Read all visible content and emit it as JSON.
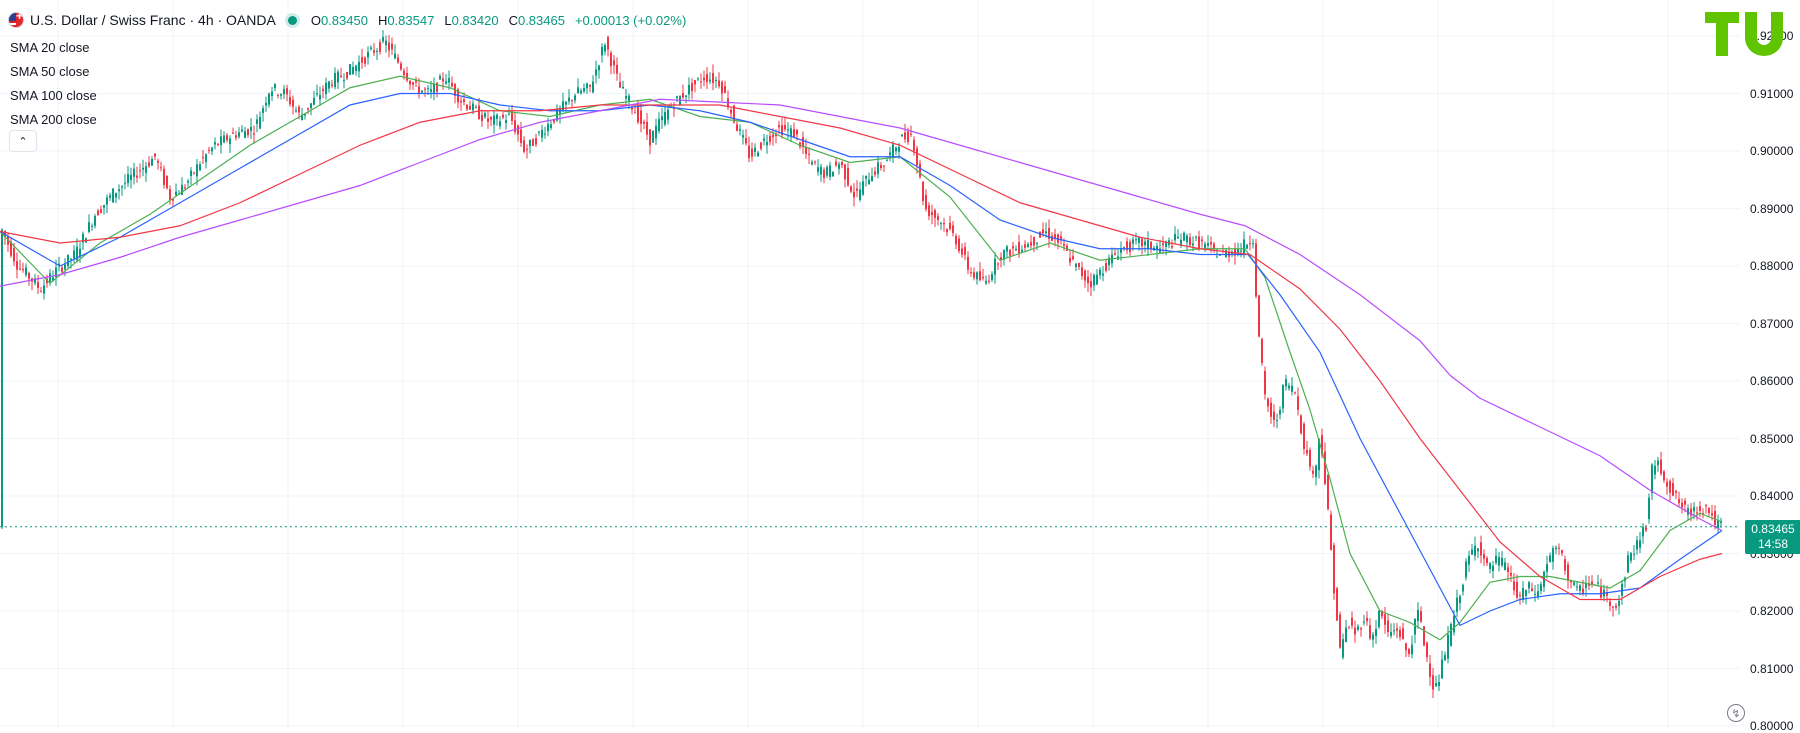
{
  "header": {
    "symbol_title": "U.S. Dollar / Swiss Franc · 4h · OANDA",
    "ohlc": [
      {
        "k": "O",
        "v": "0.83450"
      },
      {
        "k": "H",
        "v": "0.83547"
      },
      {
        "k": "L",
        "v": "0.83420"
      },
      {
        "k": "C",
        "v": "0.83465"
      },
      {
        "k": "",
        "v": "+0.00013 (+0.02%)"
      }
    ]
  },
  "indicators": [
    "SMA 20 close",
    "SMA 50 close",
    "SMA 100 close",
    "SMA 200 close"
  ],
  "collapse_icon": "chevron-up-icon",
  "logo": "TU",
  "last_price": {
    "price": "0.83465",
    "countdown": "14:58"
  },
  "colors": {
    "up": "#089981",
    "down": "#f23645",
    "sma20": "#4caf50",
    "sma50": "#2962ff",
    "sma100": "#f23645",
    "sma200": "#b84dff",
    "logo": "#61c400"
  },
  "chart_data": {
    "type": "candlestick",
    "title": "U.S. Dollar / Swiss Franc · 4h · OANDA",
    "ylim": [
      0.8,
      0.9225
    ],
    "y_ticks": [
      "0.92000",
      "0.91000",
      "0.90000",
      "0.89000",
      "0.88000",
      "0.87000",
      "0.86000",
      "0.85000",
      "0.84000",
      "0.83000",
      "0.82000",
      "0.81000",
      "0.80000"
    ],
    "price_series": [
      [
        0,
        0.887
      ],
      [
        18,
        0.88
      ],
      [
        30,
        0.878
      ],
      [
        40,
        0.876
      ],
      [
        55,
        0.879
      ],
      [
        75,
        0.882
      ],
      [
        95,
        0.889
      ],
      [
        115,
        0.893
      ],
      [
        135,
        0.896
      ],
      [
        155,
        0.899
      ],
      [
        170,
        0.892
      ],
      [
        185,
        0.894
      ],
      [
        200,
        0.898
      ],
      [
        215,
        0.901
      ],
      [
        235,
        0.903
      ],
      [
        255,
        0.904
      ],
      [
        270,
        0.911
      ],
      [
        285,
        0.91
      ],
      [
        300,
        0.906
      ],
      [
        315,
        0.909
      ],
      [
        330,
        0.912
      ],
      [
        350,
        0.914
      ],
      [
        370,
        0.917
      ],
      [
        385,
        0.919
      ],
      [
        400,
        0.915
      ],
      [
        415,
        0.911
      ],
      [
        430,
        0.91
      ],
      [
        445,
        0.913
      ],
      [
        460,
        0.909
      ],
      [
        475,
        0.907
      ],
      [
        490,
        0.905
      ],
      [
        510,
        0.906
      ],
      [
        525,
        0.9
      ],
      [
        540,
        0.903
      ],
      [
        560,
        0.907
      ],
      [
        575,
        0.91
      ],
      [
        590,
        0.911
      ],
      [
        605,
        0.919
      ],
      [
        620,
        0.911
      ],
      [
        635,
        0.907
      ],
      [
        650,
        0.902
      ],
      [
        660,
        0.905
      ],
      [
        672,
        0.908
      ],
      [
        690,
        0.911
      ],
      [
        705,
        0.913
      ],
      [
        720,
        0.912
      ],
      [
        735,
        0.905
      ],
      [
        750,
        0.899
      ],
      [
        765,
        0.902
      ],
      [
        780,
        0.904
      ],
      [
        795,
        0.903
      ],
      [
        810,
        0.898
      ],
      [
        825,
        0.896
      ],
      [
        840,
        0.898
      ],
      [
        855,
        0.892
      ],
      [
        870,
        0.896
      ],
      [
        885,
        0.898
      ],
      [
        900,
        0.902
      ],
      [
        912,
        0.903
      ],
      [
        925,
        0.89
      ],
      [
        940,
        0.888
      ],
      [
        955,
        0.885
      ],
      [
        970,
        0.879
      ],
      [
        985,
        0.877
      ],
      [
        1000,
        0.882
      ],
      [
        1015,
        0.883
      ],
      [
        1030,
        0.884
      ],
      [
        1045,
        0.886
      ],
      [
        1060,
        0.884
      ],
      [
        1075,
        0.88
      ],
      [
        1090,
        0.877
      ],
      [
        1105,
        0.88
      ],
      [
        1120,
        0.883
      ],
      [
        1140,
        0.884
      ],
      [
        1160,
        0.883
      ],
      [
        1180,
        0.885
      ],
      [
        1200,
        0.884
      ],
      [
        1220,
        0.882
      ],
      [
        1240,
        0.883
      ],
      [
        1253,
        0.885
      ],
      [
        1258,
        0.869
      ],
      [
        1265,
        0.857
      ],
      [
        1275,
        0.852
      ],
      [
        1285,
        0.86
      ],
      [
        1295,
        0.858
      ],
      [
        1305,
        0.848
      ],
      [
        1315,
        0.843
      ],
      [
        1320,
        0.852
      ],
      [
        1328,
        0.837
      ],
      [
        1333,
        0.826
      ],
      [
        1340,
        0.813
      ],
      [
        1348,
        0.818
      ],
      [
        1356,
        0.816
      ],
      [
        1364,
        0.819
      ],
      [
        1372,
        0.815
      ],
      [
        1380,
        0.82
      ],
      [
        1388,
        0.816
      ],
      [
        1398,
        0.817
      ],
      [
        1408,
        0.812
      ],
      [
        1418,
        0.82
      ],
      [
        1428,
        0.811
      ],
      [
        1435,
        0.806
      ],
      [
        1440,
        0.809
      ],
      [
        1448,
        0.815
      ],
      [
        1458,
        0.822
      ],
      [
        1468,
        0.829
      ],
      [
        1478,
        0.832
      ],
      [
        1488,
        0.827
      ],
      [
        1498,
        0.829
      ],
      [
        1508,
        0.827
      ],
      [
        1518,
        0.822
      ],
      [
        1528,
        0.824
      ],
      [
        1538,
        0.823
      ],
      [
        1548,
        0.829
      ],
      [
        1558,
        0.831
      ],
      [
        1568,
        0.826
      ],
      [
        1578,
        0.823
      ],
      [
        1588,
        0.825
      ],
      [
        1598,
        0.824
      ],
      [
        1608,
        0.822
      ],
      [
        1618,
        0.821
      ],
      [
        1628,
        0.829
      ],
      [
        1638,
        0.832
      ],
      [
        1646,
        0.835
      ],
      [
        1653,
        0.846
      ],
      [
        1660,
        0.845
      ],
      [
        1668,
        0.842
      ],
      [
        1678,
        0.839
      ],
      [
        1688,
        0.837
      ],
      [
        1698,
        0.838
      ],
      [
        1708,
        0.838
      ],
      [
        1716,
        0.835
      ],
      [
        1722,
        0.83465
      ]
    ],
    "series": [
      {
        "name": "SMA 20 close",
        "color": "#4caf50",
        "points": [
          [
            0,
            0.886
          ],
          [
            50,
            0.877
          ],
          [
            100,
            0.884
          ],
          [
            150,
            0.889
          ],
          [
            200,
            0.895
          ],
          [
            250,
            0.901
          ],
          [
            300,
            0.906
          ],
          [
            350,
            0.911
          ],
          [
            400,
            0.913
          ],
          [
            450,
            0.911
          ],
          [
            500,
            0.907
          ],
          [
            550,
            0.906
          ],
          [
            600,
            0.908
          ],
          [
            650,
            0.909
          ],
          [
            700,
            0.906
          ],
          [
            750,
            0.905
          ],
          [
            800,
            0.901
          ],
          [
            850,
            0.898
          ],
          [
            900,
            0.899
          ],
          [
            950,
            0.892
          ],
          [
            1000,
            0.881
          ],
          [
            1050,
            0.884
          ],
          [
            1100,
            0.881
          ],
          [
            1150,
            0.882
          ],
          [
            1200,
            0.883
          ],
          [
            1245,
            0.883
          ],
          [
            1265,
            0.878
          ],
          [
            1290,
            0.865
          ],
          [
            1310,
            0.855
          ],
          [
            1330,
            0.843
          ],
          [
            1350,
            0.83
          ],
          [
            1380,
            0.82
          ],
          [
            1410,
            0.818
          ],
          [
            1440,
            0.815
          ],
          [
            1460,
            0.818
          ],
          [
            1490,
            0.825
          ],
          [
            1520,
            0.826
          ],
          [
            1550,
            0.826
          ],
          [
            1580,
            0.825
          ],
          [
            1610,
            0.824
          ],
          [
            1640,
            0.827
          ],
          [
            1670,
            0.834
          ],
          [
            1700,
            0.837
          ],
          [
            1722,
            0.8355
          ]
        ]
      },
      {
        "name": "SMA 50 close",
        "color": "#2962ff",
        "points": [
          [
            0,
            0.886
          ],
          [
            60,
            0.88
          ],
          [
            120,
            0.885
          ],
          [
            180,
            0.891
          ],
          [
            240,
            0.897
          ],
          [
            300,
            0.903
          ],
          [
            350,
            0.908
          ],
          [
            400,
            0.91
          ],
          [
            450,
            0.91
          ],
          [
            500,
            0.908
          ],
          [
            550,
            0.907
          ],
          [
            600,
            0.907
          ],
          [
            650,
            0.908
          ],
          [
            700,
            0.907
          ],
          [
            750,
            0.905
          ],
          [
            800,
            0.902
          ],
          [
            850,
            0.899
          ],
          [
            900,
            0.899
          ],
          [
            950,
            0.894
          ],
          [
            1000,
            0.888
          ],
          [
            1050,
            0.885
          ],
          [
            1100,
            0.883
          ],
          [
            1150,
            0.883
          ],
          [
            1200,
            0.882
          ],
          [
            1248,
            0.882
          ],
          [
            1280,
            0.875
          ],
          [
            1320,
            0.865
          ],
          [
            1360,
            0.85
          ],
          [
            1400,
            0.837
          ],
          [
            1440,
            0.824
          ],
          [
            1460,
            0.8175
          ],
          [
            1490,
            0.82
          ],
          [
            1520,
            0.822
          ],
          [
            1560,
            0.823
          ],
          [
            1600,
            0.823
          ],
          [
            1640,
            0.824
          ],
          [
            1680,
            0.829
          ],
          [
            1722,
            0.834
          ]
        ]
      },
      {
        "name": "SMA 100 close",
        "color": "#f23645",
        "points": [
          [
            0,
            0.886
          ],
          [
            60,
            0.884
          ],
          [
            120,
            0.885
          ],
          [
            180,
            0.887
          ],
          [
            240,
            0.891
          ],
          [
            300,
            0.896
          ],
          [
            360,
            0.901
          ],
          [
            420,
            0.905
          ],
          [
            480,
            0.907
          ],
          [
            540,
            0.907
          ],
          [
            600,
            0.908
          ],
          [
            660,
            0.908
          ],
          [
            720,
            0.908
          ],
          [
            780,
            0.906
          ],
          [
            840,
            0.904
          ],
          [
            900,
            0.901
          ],
          [
            960,
            0.896
          ],
          [
            1020,
            0.891
          ],
          [
            1080,
            0.888
          ],
          [
            1140,
            0.885
          ],
          [
            1200,
            0.883
          ],
          [
            1250,
            0.882
          ],
          [
            1300,
            0.876
          ],
          [
            1340,
            0.869
          ],
          [
            1380,
            0.86
          ],
          [
            1420,
            0.85
          ],
          [
            1460,
            0.841
          ],
          [
            1500,
            0.832
          ],
          [
            1540,
            0.826
          ],
          [
            1580,
            0.822
          ],
          [
            1620,
            0.822
          ],
          [
            1660,
            0.826
          ],
          [
            1700,
            0.829
          ],
          [
            1722,
            0.83
          ]
        ]
      },
      {
        "name": "SMA 200 close",
        "color": "#b84dff",
        "points": [
          [
            0,
            0.8765
          ],
          [
            60,
            0.8785
          ],
          [
            120,
            0.8815
          ],
          [
            180,
            0.885
          ],
          [
            240,
            0.888
          ],
          [
            300,
            0.891
          ],
          [
            360,
            0.894
          ],
          [
            420,
            0.898
          ],
          [
            480,
            0.902
          ],
          [
            540,
            0.905
          ],
          [
            600,
            0.907
          ],
          [
            660,
            0.909
          ],
          [
            720,
            0.9085
          ],
          [
            780,
            0.908
          ],
          [
            840,
            0.906
          ],
          [
            900,
            0.904
          ],
          [
            960,
            0.901
          ],
          [
            1020,
            0.898
          ],
          [
            1080,
            0.895
          ],
          [
            1140,
            0.892
          ],
          [
            1200,
            0.889
          ],
          [
            1245,
            0.887
          ],
          [
            1300,
            0.882
          ],
          [
            1360,
            0.875
          ],
          [
            1420,
            0.867
          ],
          [
            1450,
            0.861
          ],
          [
            1480,
            0.857
          ],
          [
            1540,
            0.852
          ],
          [
            1600,
            0.847
          ],
          [
            1650,
            0.841
          ],
          [
            1700,
            0.836
          ],
          [
            1722,
            0.834
          ]
        ]
      }
    ]
  }
}
